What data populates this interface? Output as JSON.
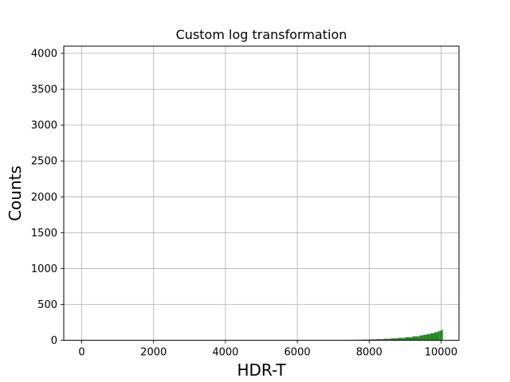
{
  "chart_data": {
    "type": "bar",
    "title": "Custom log transformation",
    "xlabel": "HDR-T",
    "ylabel": "Counts",
    "xlim": [
      -500,
      10500
    ],
    "ylim": [
      0,
      4100
    ],
    "x_ticks": [
      0,
      2000,
      4000,
      6000,
      8000,
      10000
    ],
    "y_ticks": [
      0,
      500,
      1000,
      1500,
      2000,
      2500,
      3000,
      3500,
      4000
    ],
    "grid": true,
    "bar_color": "#228b22",
    "series": [
      {
        "x": [
          6000,
          6200,
          6400,
          6600,
          6800,
          7000,
          7200,
          7400,
          7600,
          7800,
          8000,
          8200,
          8400,
          8600,
          8800,
          9000,
          9200,
          9400,
          9500,
          9600,
          9700,
          9800,
          9900,
          9950,
          10000
        ],
        "values": [
          1,
          1,
          2,
          2,
          3,
          4,
          5,
          6,
          8,
          10,
          13,
          16,
          21,
          27,
          34,
          43,
          55,
          68,
          77,
          87,
          98,
          111,
          124,
          132,
          145
        ]
      }
    ]
  }
}
